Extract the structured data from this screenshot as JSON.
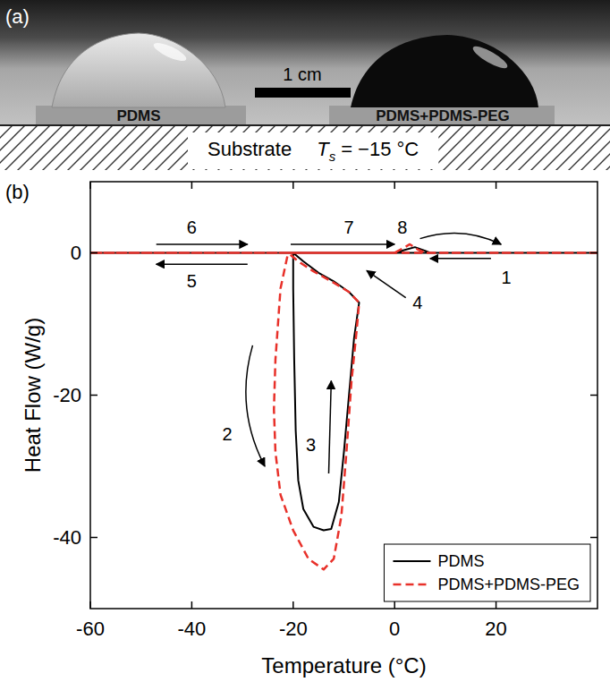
{
  "photo": {
    "panel_label": "(a)",
    "samples": [
      "PDMS",
      "PDMS+PDMS-PEG"
    ],
    "scale_bar": "1 cm",
    "substrate": "Substrate",
    "temperature_symbol": "T",
    "temperature_subscript": "s",
    "temperature_value": "= −15 °C"
  },
  "chart_data": {
    "type": "line",
    "panel_label": "(b)",
    "x_label": "Temperature (°C)",
    "y_label": "Heat Flow (W/g)",
    "xlim": [
      -60,
      40
    ],
    "xticks": [
      -60,
      -40,
      -20,
      0,
      20
    ],
    "ylim": [
      -50,
      10
    ],
    "yticks": [
      -40,
      -20,
      0
    ],
    "grid": false,
    "legend": "lower right",
    "series": [
      {
        "name": "PDMS",
        "color": "#000000",
        "line_style": "solid",
        "x": [
          40,
          -20,
          -20,
          -19.8,
          -19.5,
          -19,
          -18,
          -16,
          -14,
          -12.5,
          -11,
          -10,
          -9,
          -8,
          -7,
          -9,
          -12,
          -15,
          -18,
          -20,
          -60,
          0,
          2,
          4,
          6,
          7,
          40
        ],
        "values": [
          0,
          0,
          -5,
          -15,
          -25,
          -32,
          -36,
          -38.5,
          -39,
          -38.8,
          -35,
          -28,
          -20,
          -12,
          -7,
          -5.5,
          -4,
          -2.8,
          -1.2,
          0,
          0,
          0,
          0.4,
          0.8,
          0.3,
          0,
          0
        ]
      },
      {
        "name": "PDMS+PDMS-PEG",
        "color": "#e8312a",
        "line_style": "dashed",
        "x": [
          40,
          -21,
          -22.5,
          -23.5,
          -23.8,
          -23.5,
          -22.5,
          -20,
          -17,
          -14,
          -12,
          -10.5,
          -9.5,
          -8.5,
          -7.5,
          -7,
          -9,
          -12,
          -16,
          -19,
          -21,
          -60,
          0,
          1.5,
          3,
          4.5,
          6,
          40
        ],
        "values": [
          0,
          0,
          -5,
          -15,
          -22,
          -28,
          -34,
          -39,
          -43,
          -44.5,
          -43,
          -37,
          -28,
          -18,
          -11,
          -7,
          -5.5,
          -4.2,
          -2.6,
          -1.2,
          0,
          0,
          0,
          0.6,
          1.2,
          0.5,
          0,
          0
        ]
      }
    ],
    "annotations": [
      {
        "text": "1",
        "x": 22,
        "y": -3.5,
        "arrow": [
          19,
          -0.8,
          7,
          -0.8
        ]
      },
      {
        "text": "2",
        "x": -33,
        "y": -25.5,
        "arrow": [
          -28,
          -13,
          -25.6,
          -30
        ],
        "line_style": "curved"
      },
      {
        "text": "3",
        "x": -16.5,
        "y": -27,
        "arrow": [
          -13,
          -31,
          -12.5,
          -18
        ]
      },
      {
        "text": "4",
        "x": 4.5,
        "y": -7,
        "arrow": [
          2.2,
          -6.3,
          -5.5,
          -2.5
        ]
      },
      {
        "text": "5",
        "x": -40,
        "y": -4,
        "arrow": [
          -29,
          -1.6,
          -47,
          -1.6
        ]
      },
      {
        "text": "6",
        "x": -40,
        "y": 3.6,
        "arrow": [
          -47,
          1.2,
          -29,
          1.2
        ]
      },
      {
        "text": "7",
        "x": -9,
        "y": 3.6,
        "arrow": [
          -20.5,
          1.2,
          0,
          1.2
        ]
      },
      {
        "text": "8",
        "x": 1.5,
        "y": 3.6,
        "arrow": [
          5,
          2,
          21,
          1.2
        ],
        "line_style": "curved"
      }
    ]
  }
}
